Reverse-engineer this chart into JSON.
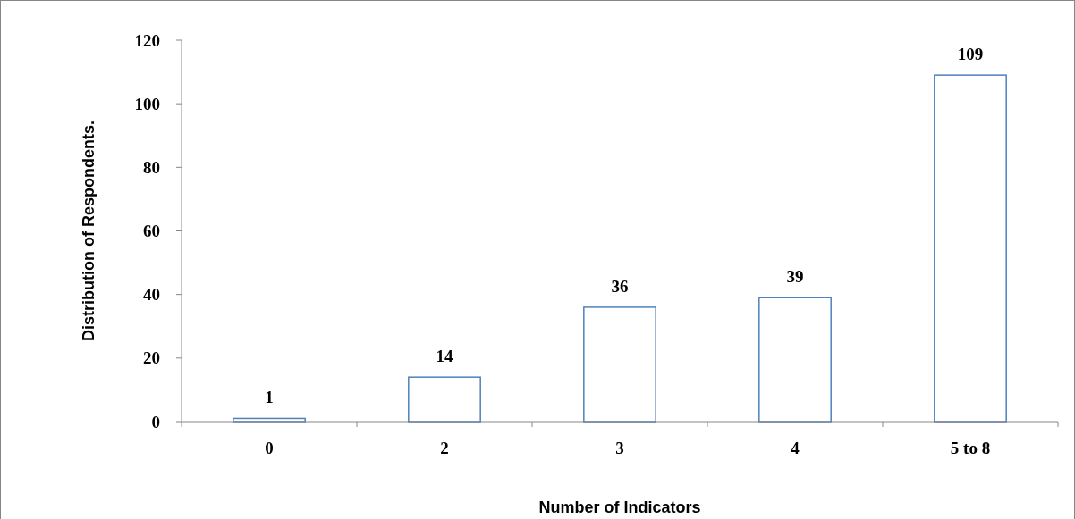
{
  "chart_data": {
    "type": "bar",
    "xlabel": "Number of Indicators",
    "ylabel": "Distribution of Respondents.",
    "categories": [
      "0",
      "2",
      "3",
      "4",
      "5 to 8"
    ],
    "values": [
      1,
      14,
      36,
      39,
      109
    ],
    "color": "#4f81bd",
    "ylim": [
      0,
      120
    ],
    "yticks": [
      0,
      20,
      40,
      60,
      80,
      100,
      120
    ],
    "data_labels": true
  }
}
